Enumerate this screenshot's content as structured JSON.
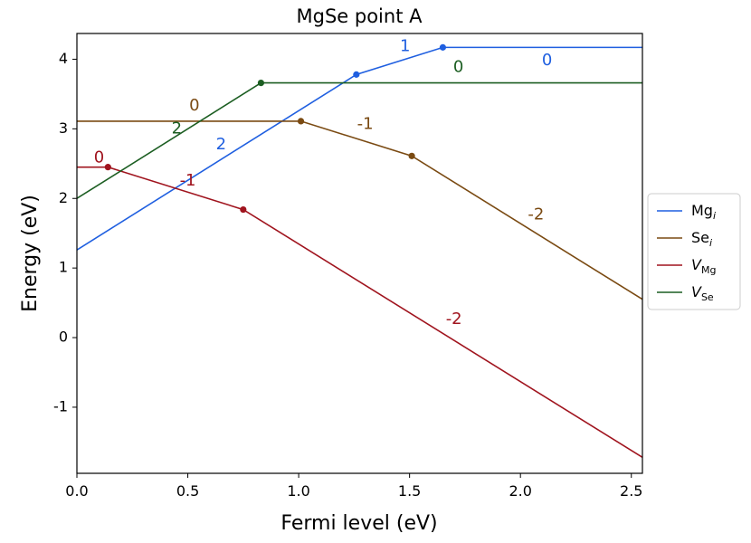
{
  "chart_data": {
    "type": "line",
    "title": "MgSe point A",
    "xlabel": "Fermi level (eV)",
    "ylabel": "Energy (eV)",
    "xlim": [
      0.0,
      2.55
    ],
    "ylim": [
      -1.95,
      4.37
    ],
    "x_ticks": [
      0.0,
      0.5,
      1.0,
      1.5,
      2.0,
      2.5
    ],
    "x_tick_labels": [
      "0.0",
      "0.5",
      "1.0",
      "1.5",
      "2.0",
      "2.5"
    ],
    "y_ticks": [
      -1,
      0,
      1,
      2,
      3,
      4
    ],
    "y_tick_labels": [
      "-1",
      "0",
      "1",
      "2",
      "3",
      "4"
    ],
    "grid": false,
    "legend_position": "right",
    "series": [
      {
        "key": "mg_i",
        "name_main": "Mg",
        "name_sub": "i",
        "sub_style": "italic",
        "color": "#1f5fe0",
        "x": [
          0.0,
          1.26,
          1.65,
          2.55
        ],
        "y": [
          1.26,
          3.78,
          4.17,
          4.17
        ],
        "transitions": [
          {
            "x": 1.26,
            "y": 3.78
          },
          {
            "x": 1.65,
            "y": 4.17
          }
        ],
        "charge_labels": [
          {
            "text": "2",
            "x": 0.65,
            "y": 2.77
          },
          {
            "text": "1",
            "x": 1.48,
            "y": 4.18
          },
          {
            "text": "0",
            "x": 2.12,
            "y": 3.98
          }
        ]
      },
      {
        "key": "se_i",
        "name_main": "Se",
        "name_sub": "i",
        "sub_style": "italic",
        "color": "#7a4a12",
        "x": [
          0.0,
          1.01,
          1.51,
          2.55
        ],
        "y": [
          3.11,
          3.11,
          2.61,
          0.55
        ],
        "transitions": [
          {
            "x": 1.01,
            "y": 3.11
          },
          {
            "x": 1.51,
            "y": 2.61
          }
        ],
        "charge_labels": [
          {
            "text": "0",
            "x": 0.53,
            "y": 3.33
          },
          {
            "text": "-1",
            "x": 1.3,
            "y": 3.06
          },
          {
            "text": "-2",
            "x": 2.07,
            "y": 1.76
          }
        ]
      },
      {
        "key": "v_mg",
        "name_main": "V",
        "name_sub": "Mg",
        "sub_style": "normal",
        "color": "#a0141e",
        "x": [
          0.0,
          0.14,
          0.75,
          2.55
        ],
        "y": [
          2.45,
          2.45,
          1.84,
          -1.72
        ],
        "transitions": [
          {
            "x": 0.14,
            "y": 2.45
          },
          {
            "x": 0.75,
            "y": 1.84
          }
        ],
        "charge_labels": [
          {
            "text": "0",
            "x": 0.1,
            "y": 2.58
          },
          {
            "text": "-1",
            "x": 0.5,
            "y": 2.25
          },
          {
            "text": "-2",
            "x": 1.7,
            "y": 0.26
          }
        ]
      },
      {
        "key": "v_se",
        "name_main": "V",
        "name_sub": "Se",
        "sub_style": "normal",
        "color": "#1c5e22",
        "x": [
          0.0,
          0.83,
          2.55
        ],
        "y": [
          2.0,
          3.66,
          3.66
        ],
        "transitions": [
          {
            "x": 0.83,
            "y": 3.66
          }
        ],
        "charge_labels": [
          {
            "text": "2",
            "x": 0.45,
            "y": 3.0
          },
          {
            "text": "0",
            "x": 1.72,
            "y": 3.88
          }
        ]
      }
    ]
  }
}
